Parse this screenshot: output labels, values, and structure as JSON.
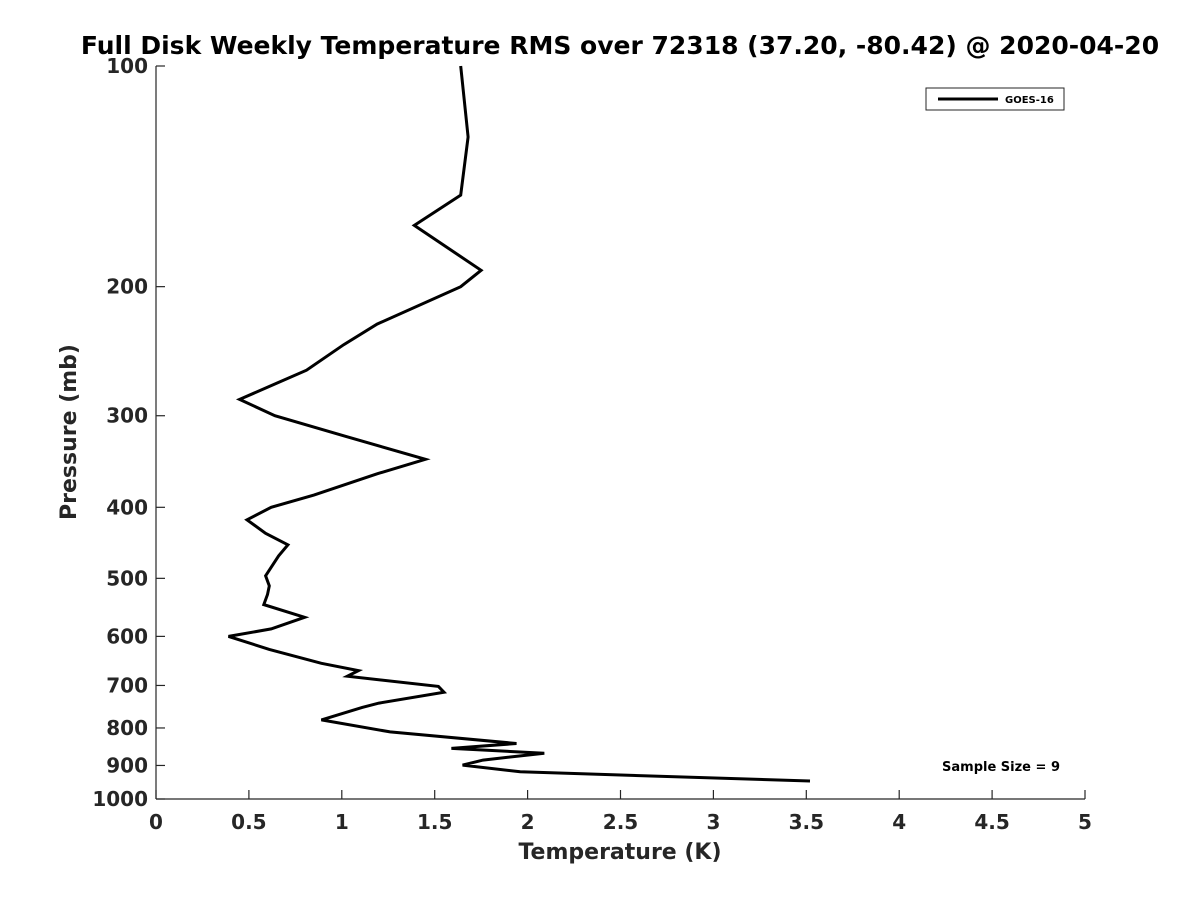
{
  "chart_data": {
    "type": "line",
    "title": "Full Disk Weekly Temperature RMS over 72318 (37.20, -80.42) @ 2020-04-20",
    "xlabel": "Temperature (K)",
    "ylabel": "Pressure (mb)",
    "xlim": [
      0,
      5
    ],
    "ylim": [
      1000,
      100
    ],
    "y_scale": "log",
    "y_reversed": true,
    "x_ticks": [
      0,
      0.5,
      1,
      1.5,
      2,
      2.5,
      3,
      3.5,
      4,
      4.5,
      5
    ],
    "x_tick_labels": [
      "0",
      "0.5",
      "1",
      "1.5",
      "2",
      "2.5",
      "3",
      "3.5",
      "4",
      "4.5",
      "5"
    ],
    "y_ticks": [
      100,
      200,
      300,
      400,
      500,
      600,
      700,
      800,
      900,
      1000
    ],
    "y_tick_labels": [
      "100",
      "200",
      "300",
      "400",
      "500",
      "600",
      "700",
      "800",
      "900",
      "1000"
    ],
    "grid": false,
    "legend_position": "top-right",
    "annotation": "Sample Size = 9",
    "series": [
      {
        "name": "GOES-16",
        "color": "#000000",
        "points": [
          [
            1.64,
            100
          ],
          [
            1.68,
            125
          ],
          [
            1.64,
            150
          ],
          [
            1.39,
            165
          ],
          [
            1.75,
            190
          ],
          [
            1.64,
            200
          ],
          [
            1.19,
            225
          ],
          [
            1.01,
            240
          ],
          [
            0.81,
            260
          ],
          [
            0.45,
            285
          ],
          [
            0.64,
            300
          ],
          [
            1.02,
            320
          ],
          [
            1.45,
            344
          ],
          [
            1.19,
            360
          ],
          [
            0.85,
            385
          ],
          [
            0.62,
            400
          ],
          [
            0.49,
            416
          ],
          [
            0.59,
            434
          ],
          [
            0.71,
            450
          ],
          [
            0.66,
            466
          ],
          [
            0.59,
            496
          ],
          [
            0.61,
            512
          ],
          [
            0.6,
            526
          ],
          [
            0.58,
            543
          ],
          [
            0.8,
            565
          ],
          [
            0.62,
            586
          ],
          [
            0.39,
            600
          ],
          [
            0.61,
            625
          ],
          [
            0.89,
            653
          ],
          [
            1.09,
            668
          ],
          [
            1.03,
            680
          ],
          [
            1.52,
            702
          ],
          [
            1.55,
            715
          ],
          [
            1.2,
            740
          ],
          [
            1.11,
            750
          ],
          [
            0.89,
            780
          ],
          [
            1.26,
            810
          ],
          [
            1.94,
            840
          ],
          [
            1.59,
            853
          ],
          [
            2.09,
            866
          ],
          [
            1.76,
            885
          ],
          [
            1.65,
            899
          ],
          [
            1.96,
            918
          ],
          [
            3.52,
            945
          ]
        ]
      }
    ]
  }
}
